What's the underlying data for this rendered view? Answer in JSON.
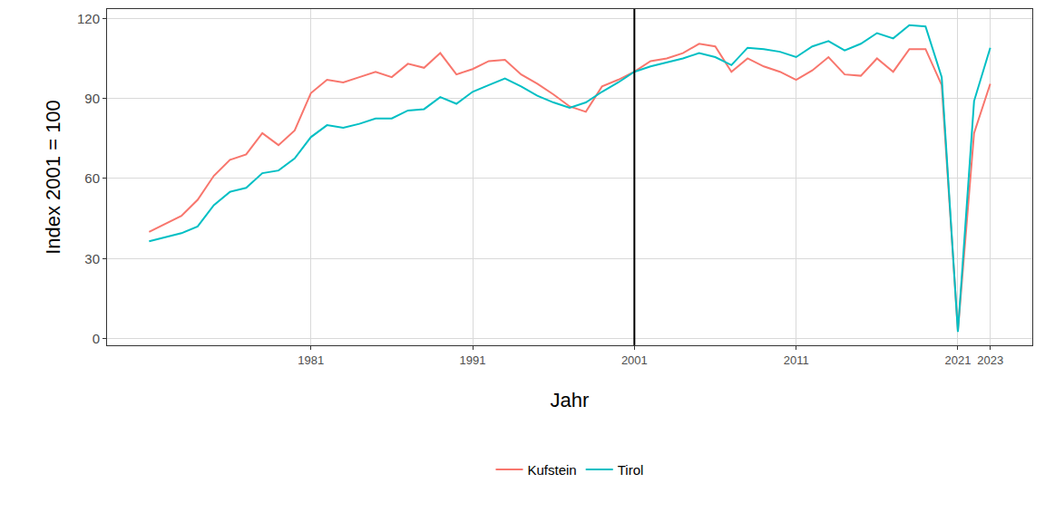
{
  "chart_data": {
    "type": "line",
    "x_label": "Jahr",
    "y_label": "Index 2001 = 100",
    "x": [
      1971,
      1972,
      1973,
      1974,
      1975,
      1976,
      1977,
      1978,
      1979,
      1980,
      1981,
      1982,
      1983,
      1984,
      1985,
      1986,
      1987,
      1988,
      1989,
      1990,
      1991,
      1992,
      1993,
      1994,
      1995,
      1996,
      1997,
      1998,
      1999,
      2000,
      2001,
      2002,
      2003,
      2004,
      2005,
      2006,
      2007,
      2008,
      2009,
      2010,
      2011,
      2012,
      2013,
      2014,
      2015,
      2016,
      2017,
      2018,
      2019,
      2020,
      2021,
      2022,
      2023
    ],
    "series": [
      {
        "name": "Kufstein",
        "color": "#F8766D",
        "values": [
          40,
          43,
          46,
          52,
          61,
          67,
          69,
          77,
          72.5,
          78,
          92,
          97,
          96,
          98,
          100,
          98,
          103,
          101.5,
          107,
          99,
          101,
          104,
          104.5,
          99,
          95.5,
          91.5,
          87,
          85,
          94.5,
          97,
          100,
          104,
          105,
          107,
          110.5,
          109.5,
          100,
          105,
          102,
          100,
          97,
          100.5,
          105.5,
          99,
          98.5,
          105,
          100,
          108.5,
          108.5,
          95,
          3,
          77,
          95.5
        ]
      },
      {
        "name": "Tirol",
        "color": "#00BFC4",
        "values": [
          36.5,
          38,
          39.5,
          42,
          50,
          55,
          56.5,
          62,
          63,
          67.5,
          75.5,
          80,
          79,
          80.5,
          82.5,
          82.5,
          85.5,
          86,
          90.5,
          88,
          92.5,
          95,
          97.5,
          94.5,
          91,
          88.5,
          86.5,
          88.5,
          92.5,
          96,
          100,
          102,
          103.5,
          105,
          107,
          105.5,
          102.5,
          109,
          108.5,
          107.5,
          105.5,
          109.5,
          111.5,
          108,
          110.5,
          114.5,
          112.5,
          117.5,
          117,
          98,
          2.5,
          89,
          109
        ]
      }
    ],
    "xlim": [
      1968.4,
      2025.6
    ],
    "xticks": [
      1981,
      1991,
      2001,
      2011,
      2021,
      2023
    ],
    "ylim": [
      -2.5,
      123.5
    ],
    "yticks": [
      0,
      30,
      60,
      90,
      120
    ],
    "reference_line": 2001,
    "grid": true,
    "legend": "bottom"
  }
}
